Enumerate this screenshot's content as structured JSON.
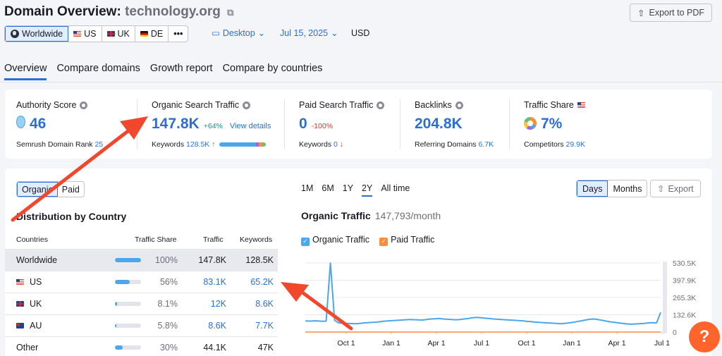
{
  "header": {
    "title_prefix": "Domain Overview:",
    "domain": "technology.org",
    "export_pdf": "Export to PDF"
  },
  "geo": {
    "worldwide": "Worldwide",
    "us": "US",
    "uk": "UK",
    "de": "DE",
    "more": "•••"
  },
  "filters": {
    "device": "Desktop",
    "date": "Jul 15, 2025",
    "currency": "USD"
  },
  "tabs": [
    "Overview",
    "Compare domains",
    "Growth report",
    "Compare by countries"
  ],
  "metrics": {
    "authority": {
      "label": "Authority Score",
      "value": "46",
      "sub_label": "Semrush Domain Rank",
      "sub_value": "25"
    },
    "organic": {
      "label": "Organic Search Traffic",
      "value": "147.8K",
      "delta": "+64%",
      "link": "View details",
      "sub_label": "Keywords",
      "sub_value": "128.5K",
      "sub_arrow": "↑"
    },
    "paid": {
      "label": "Paid Search Traffic",
      "value": "0",
      "delta": "-100%",
      "sub_label": "Keywords",
      "sub_value": "0",
      "sub_arrow": "↓"
    },
    "backlinks": {
      "label": "Backlinks",
      "value": "204.8K",
      "sub_label": "Referring Domains",
      "sub_value": "6.7K"
    },
    "share": {
      "label": "Traffic Share",
      "value": "7%",
      "sub_label": "Competitors",
      "sub_value": "29.9K"
    }
  },
  "distribution": {
    "seg_organic": "Organic",
    "seg_paid": "Paid",
    "title": "Distribution by Country",
    "headers": {
      "countries": "Countries",
      "share": "Traffic Share",
      "traffic": "Traffic",
      "keywords": "Keywords"
    },
    "rows": [
      {
        "country": "Worldwide",
        "share": "100%",
        "share_frac": 1.0,
        "traffic": "147.8K",
        "keywords": "128.5K"
      },
      {
        "country": "US",
        "share": "56%",
        "share_frac": 0.56,
        "traffic": "83.1K",
        "keywords": "65.2K"
      },
      {
        "country": "UK",
        "share": "8.1%",
        "share_frac": 0.081,
        "traffic": "12K",
        "keywords": "8.6K"
      },
      {
        "country": "AU",
        "share": "5.8%",
        "share_frac": 0.058,
        "traffic": "8.6K",
        "keywords": "7.7K"
      },
      {
        "country": "Other",
        "share": "30%",
        "share_frac": 0.3,
        "traffic": "44.1K",
        "keywords": "47K"
      }
    ]
  },
  "trend": {
    "periods": [
      "1M",
      "6M",
      "1Y",
      "2Y",
      "All time"
    ],
    "active_period": "2Y",
    "days": "Days",
    "months": "Months",
    "export": "Export",
    "title": "Organic Traffic",
    "subtitle": "147,793/month",
    "legend_organic": "Organic Traffic",
    "legend_paid": "Paid Traffic"
  },
  "chart_data": {
    "type": "line",
    "x_ticks": [
      "Oct 1",
      "Jan 1",
      "Apr 1",
      "Jul 1",
      "Oct 1",
      "Jan 1",
      "Apr 1",
      "Jul 1"
    ],
    "y_ticks": [
      "530.5K",
      "397.9K",
      "265.3K",
      "132.6K",
      "0"
    ],
    "ylim": [
      0,
      530500
    ],
    "series": [
      {
        "name": "Organic Traffic",
        "color": "#4ba7ea",
        "values": [
          85000,
          84000,
          86000,
          85000,
          83000,
          84000,
          530000,
          90000,
          70000,
          68000,
          66000,
          65000,
          64000,
          66000,
          70000,
          72000,
          74000,
          76000,
          80000,
          84000,
          86000,
          88000,
          90000,
          92000,
          94000,
          96000,
          95000,
          93000,
          92000,
          96000,
          100000,
          102000,
          104000,
          100000,
          98000,
          96000,
          94000,
          96000,
          100000,
          104000,
          110000,
          112000,
          110000,
          106000,
          104000,
          100000,
          98000,
          96000,
          94000,
          92000,
          90000,
          88000,
          86000,
          82000,
          80000,
          76000,
          74000,
          72000,
          70000,
          68000,
          66000,
          64000,
          66000,
          70000,
          74000,
          80000,
          86000,
          92000,
          98000,
          100000,
          96000,
          90000,
          84000,
          78000,
          74000,
          70000,
          66000,
          62000,
          60000,
          62000,
          64000,
          66000,
          70000,
          72000,
          70000,
          150000
        ]
      },
      {
        "name": "Paid Traffic",
        "color": "#ff8c3a",
        "values": [
          0
        ]
      }
    ]
  },
  "help": "?",
  "colors": {
    "accent": "#2b6fd6",
    "arrow": "#f0472d",
    "organic": "#4ba7ea",
    "paid": "#ff8c3a"
  }
}
